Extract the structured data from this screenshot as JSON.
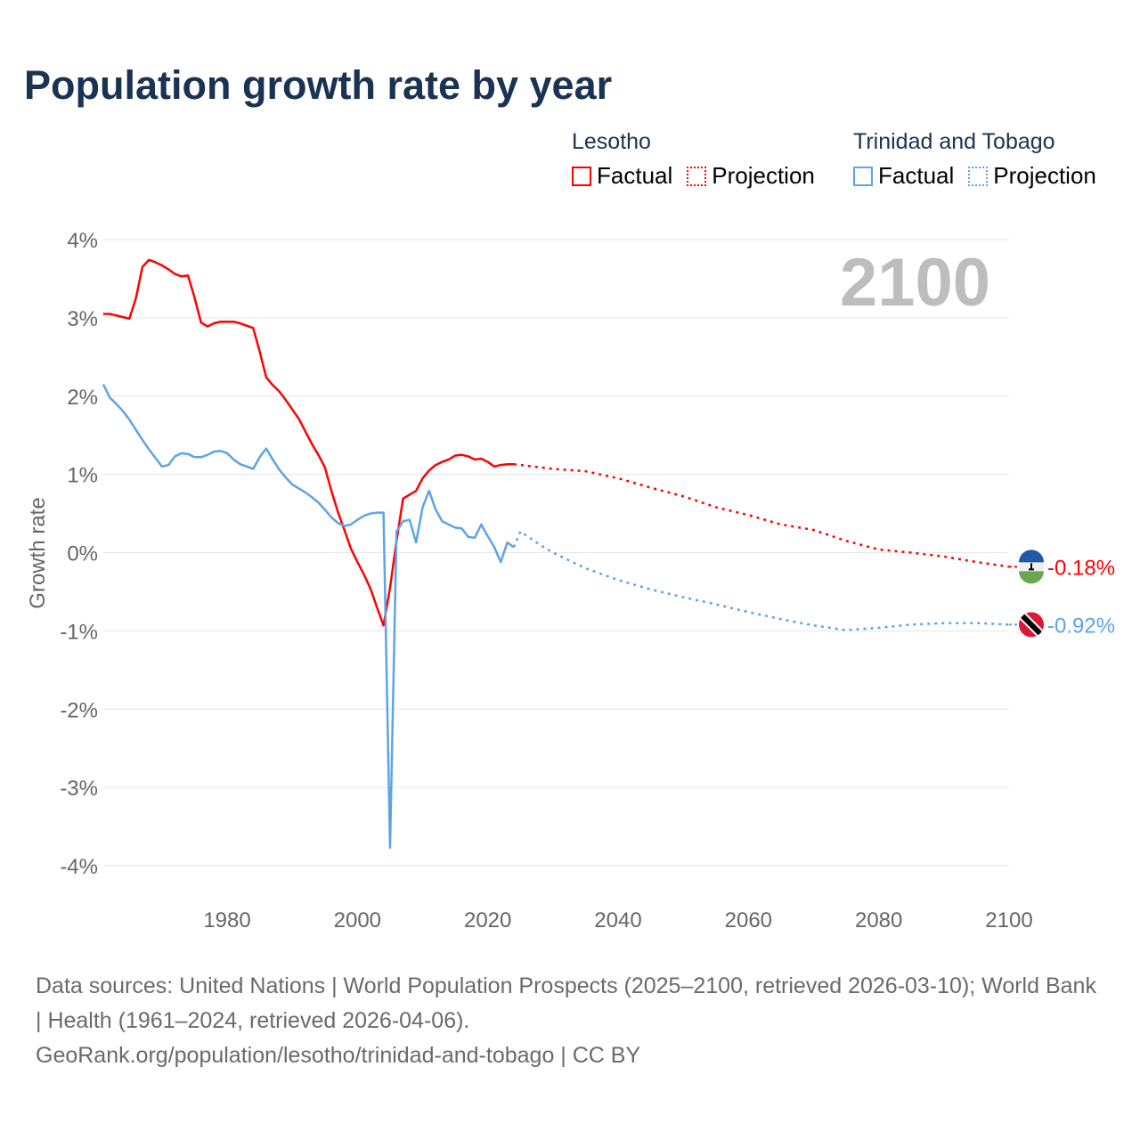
{
  "chart_data": {
    "type": "line",
    "title": "Population growth rate by year",
    "xlabel": "",
    "ylabel": "Growth rate",
    "xlim": [
      1961,
      2100
    ],
    "ylim": [
      -4,
      4
    ],
    "x_ticks": [
      1980,
      2000,
      2020,
      2040,
      2060,
      2080,
      2100
    ],
    "x_tick_labels": [
      "1980",
      "2000",
      "2020",
      "2040",
      "2060",
      "2080",
      "2100"
    ],
    "y_ticks": [
      4,
      3,
      2,
      1,
      0,
      -1,
      -2,
      -3,
      -4
    ],
    "y_tick_labels": [
      "4%",
      "3%",
      "2%",
      "1%",
      "0%",
      "-1%",
      "-2%",
      "-3%",
      "-4%"
    ],
    "grid": true,
    "year_overlay": "2100",
    "legend_position": "top-right",
    "legend": {
      "groups": [
        {
          "name": "Lesotho",
          "color": "#ff0000",
          "factual_label": "Factual",
          "projection_label": "Projection"
        },
        {
          "name": "Trinidad and Tobago",
          "color": "#5ba4e6",
          "factual_label": "Factual",
          "projection_label": "Projection"
        }
      ]
    },
    "series": [
      {
        "name": "Lesotho",
        "color": "#ff0000",
        "end_label": "-0.18%",
        "factual": {
          "x": [
            1961,
            1962,
            1963,
            1964,
            1965,
            1966,
            1967,
            1968,
            1969,
            1970,
            1971,
            1972,
            1973,
            1974,
            1975,
            1976,
            1977,
            1978,
            1979,
            1980,
            1981,
            1982,
            1983,
            1984,
            1985,
            1986,
            1987,
            1988,
            1989,
            1990,
            1991,
            1992,
            1993,
            1994,
            1995,
            1996,
            1997,
            1998,
            1999,
            2000,
            2001,
            2002,
            2003,
            2004,
            2005,
            2006,
            2007,
            2008,
            2009,
            2010,
            2011,
            2012,
            2013,
            2014,
            2015,
            2016,
            2017,
            2018,
            2019,
            2020,
            2021,
            2022,
            2023,
            2024
          ],
          "y": [
            3.05,
            3.05,
            3.03,
            3.01,
            2.99,
            3.25,
            3.65,
            3.74,
            3.71,
            3.67,
            3.62,
            3.56,
            3.53,
            3.54,
            3.26,
            2.94,
            2.89,
            2.93,
            2.95,
            2.95,
            2.95,
            2.93,
            2.9,
            2.87,
            2.57,
            2.24,
            2.14,
            2.06,
            1.95,
            1.83,
            1.71,
            1.55,
            1.39,
            1.25,
            1.09,
            0.79,
            0.52,
            0.29,
            0.05,
            -0.12,
            -0.28,
            -0.46,
            -0.7,
            -0.93,
            -0.45,
            0.15,
            0.69,
            0.74,
            0.79,
            0.95,
            1.05,
            1.12,
            1.16,
            1.19,
            1.24,
            1.25,
            1.23,
            1.19,
            1.2,
            1.16,
            1.1,
            1.12,
            1.13,
            1.13
          ]
        },
        "projection": {
          "x": [
            2024,
            2030,
            2035,
            2040,
            2045,
            2050,
            2055,
            2060,
            2065,
            2070,
            2075,
            2080,
            2085,
            2090,
            2095,
            2100
          ],
          "y": [
            1.13,
            1.07,
            1.04,
            0.95,
            0.83,
            0.72,
            0.58,
            0.48,
            0.36,
            0.29,
            0.15,
            0.04,
            0.0,
            -0.05,
            -0.12,
            -0.18
          ]
        }
      },
      {
        "name": "Trinidad and Tobago",
        "color": "#5ba4e6",
        "end_label": "-0.92%",
        "factual": {
          "x": [
            1961,
            1962,
            1963,
            1964,
            1965,
            1966,
            1967,
            1968,
            1969,
            1970,
            1971,
            1972,
            1973,
            1974,
            1975,
            1976,
            1977,
            1978,
            1979,
            1980,
            1981,
            1982,
            1983,
            1984,
            1985,
            1986,
            1987,
            1988,
            1989,
            1990,
            1991,
            1992,
            1993,
            1994,
            1995,
            1996,
            1997,
            1998,
            1999,
            2000,
            2001,
            2002,
            2003,
            2004,
            2005,
            2006,
            2007,
            2008,
            2009,
            2010,
            2011,
            2012,
            2013,
            2014,
            2015,
            2016,
            2017,
            2018,
            2019,
            2020,
            2021,
            2022,
            2023,
            2024
          ],
          "y": [
            2.15,
            1.98,
            1.9,
            1.81,
            1.7,
            1.57,
            1.44,
            1.32,
            1.21,
            1.1,
            1.12,
            1.23,
            1.27,
            1.26,
            1.22,
            1.22,
            1.25,
            1.29,
            1.3,
            1.27,
            1.19,
            1.13,
            1.1,
            1.07,
            1.22,
            1.33,
            1.19,
            1.06,
            0.96,
            0.87,
            0.82,
            0.77,
            0.71,
            0.64,
            0.55,
            0.45,
            0.38,
            0.34,
            0.36,
            0.42,
            0.47,
            0.5,
            0.51,
            0.51,
            -3.77,
            0.27,
            0.4,
            0.42,
            0.13,
            0.58,
            0.79,
            0.55,
            0.4,
            0.36,
            0.32,
            0.31,
            0.2,
            0.19,
            0.36,
            0.21,
            0.07,
            -0.12,
            0.13,
            0.07
          ]
        },
        "projection": {
          "x": [
            2024,
            2025,
            2028,
            2030,
            2035,
            2040,
            2045,
            2050,
            2055,
            2060,
            2065,
            2070,
            2075,
            2080,
            2085,
            2090,
            2095,
            2100
          ],
          "y": [
            0.07,
            0.27,
            0.1,
            0.0,
            -0.2,
            -0.35,
            -0.47,
            -0.57,
            -0.66,
            -0.76,
            -0.85,
            -0.93,
            -0.99,
            -0.96,
            -0.92,
            -0.9,
            -0.9,
            -0.92
          ]
        }
      }
    ]
  },
  "footer": {
    "sources": "Data sources: United Nations | World Population Prospects (2025–2100, retrieved 2026-03-10); World Bank | Health (1961–2024, retrieved 2026-04-06).",
    "credit": "GeoRank.org/population/lesotho/trinidad-and-tobago | CC BY"
  }
}
